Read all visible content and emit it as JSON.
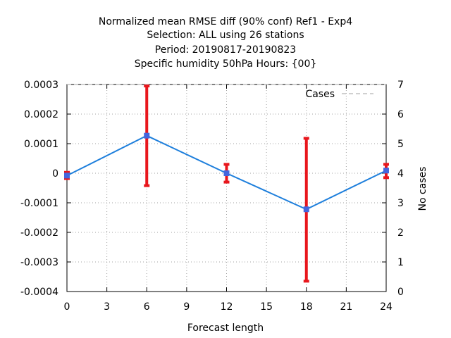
{
  "chart_data": {
    "type": "line",
    "title_lines": [
      "Normalized mean RMSE diff (90% conf) Ref1 - Exp4",
      "Selection: ALL using    26 stations",
      "Period: 20190817-20190823",
      "Specific humidity 50hPa   Hours: {00}"
    ],
    "xlabel": "Forecast length",
    "ylabel_right": "No cases",
    "xlim": [
      0,
      24
    ],
    "x_ticks": [
      0,
      3,
      6,
      9,
      12,
      15,
      18,
      21,
      24
    ],
    "ylim": [
      -0.0004,
      0.0003
    ],
    "y_ticks": [
      0.0003,
      0.0002,
      0.0001,
      0,
      -0.0001,
      -0.0002,
      -0.0003,
      -0.0004
    ],
    "y_tick_labels": [
      "0.0003",
      "0.0002",
      "0.0001",
      "0",
      "-0.0001",
      "-0.0002",
      "-0.0003",
      "-0.0004"
    ],
    "y2lim": [
      0,
      7
    ],
    "y2_ticks": [
      7,
      6,
      5,
      4,
      3,
      2,
      1,
      0
    ],
    "grid": true,
    "legend_position": "top-right",
    "series": [
      {
        "name": "Cases",
        "axis": "right",
        "style": "dashed",
        "color": "#a0a0a0",
        "x": [
          0,
          6,
          12,
          18,
          24
        ],
        "values": [
          7,
          7,
          7,
          7,
          7
        ]
      },
      {
        "axis": "left",
        "color": "#1e7fdc",
        "marker_color": "#4466dd",
        "x": [
          0,
          6,
          12,
          18,
          24
        ],
        "values": [
          -8e-06,
          0.000127,
          0.0,
          -0.000122,
          9e-06
        ]
      }
    ],
    "error_bars": {
      "color": "#e8161c",
      "x": [
        0,
        6,
        12,
        18,
        24
      ],
      "low": [
        -1.8e-05,
        -4.2e-05,
        -3e-05,
        -0.000365,
        -1.5e-05
      ],
      "high": [
        3e-06,
        0.000295,
        3e-05,
        0.000118,
        3e-05
      ]
    }
  }
}
